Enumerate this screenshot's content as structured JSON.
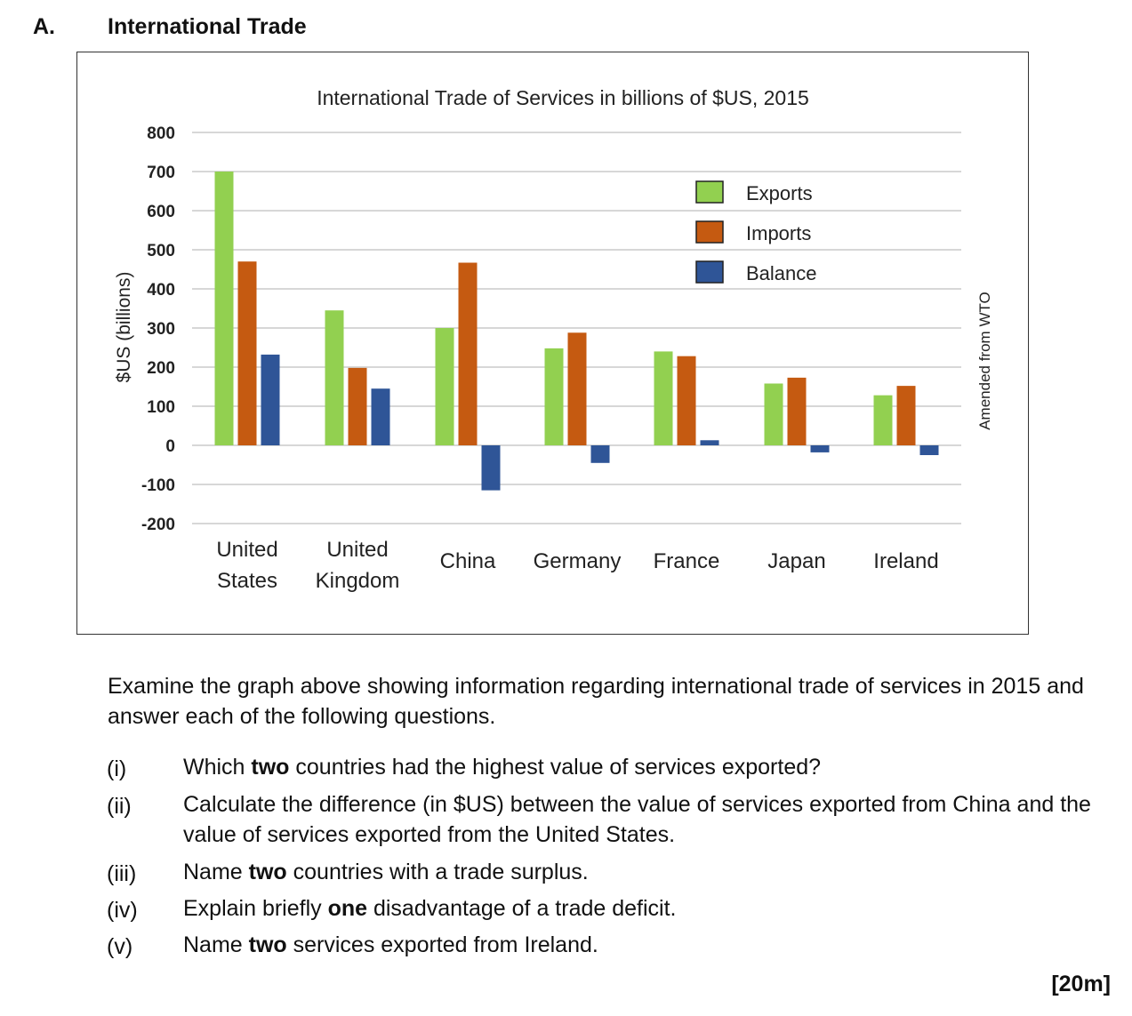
{
  "header": {
    "letter": "A.",
    "title": "International Trade"
  },
  "chart_data": {
    "type": "bar",
    "title": "International Trade of Services in billions of $US, 2015",
    "ylabel": "$US (billions)",
    "xlabel": "",
    "ylim": [
      -200,
      800
    ],
    "yticks": [
      800,
      700,
      600,
      500,
      400,
      300,
      200,
      100,
      0,
      -100,
      -200
    ],
    "grid": true,
    "legend_position": "top-right",
    "categories": [
      [
        "United",
        "States"
      ],
      [
        "United",
        "Kingdom"
      ],
      [
        "China"
      ],
      [
        "Germany"
      ],
      [
        "France"
      ],
      [
        "Japan"
      ],
      [
        "Ireland"
      ]
    ],
    "series": [
      {
        "name": "Exports",
        "color": "#92d050",
        "values": [
          700,
          345,
          300,
          248,
          240,
          158,
          128
        ]
      },
      {
        "name": "Imports",
        "color": "#c55a11",
        "values": [
          470,
          198,
          467,
          288,
          228,
          173,
          152
        ]
      },
      {
        "name": "Balance",
        "color": "#2f5597",
        "values": [
          232,
          145,
          -115,
          -45,
          13,
          -18,
          -25
        ]
      }
    ],
    "side_note": "Amended from WTO"
  },
  "intro": "Examine the graph above showing information regarding international trade of services in 2015 and answer each of the following questions.",
  "questions": [
    {
      "num": "(i)",
      "parts": [
        [
          "Which ",
          false
        ],
        [
          "two",
          true
        ],
        [
          " countries had the highest value of services exported?",
          false
        ]
      ]
    },
    {
      "num": "(ii)",
      "parts": [
        [
          "Calculate the difference (in $US) between the value of services exported from China and the value of services exported from the United States.",
          false
        ]
      ]
    },
    {
      "num": "(iii)",
      "parts": [
        [
          "Name ",
          false
        ],
        [
          "two",
          true
        ],
        [
          " countries with a trade surplus.",
          false
        ]
      ]
    },
    {
      "num": "(iv)",
      "parts": [
        [
          "Explain briefly ",
          false
        ],
        [
          "one",
          true
        ],
        [
          " disadvantage of a trade deficit.",
          false
        ]
      ]
    },
    {
      "num": "(v)",
      "parts": [
        [
          "Name ",
          false
        ],
        [
          "two",
          true
        ],
        [
          " services exported from Ireland.",
          false
        ]
      ]
    }
  ],
  "marks": "[20m]"
}
